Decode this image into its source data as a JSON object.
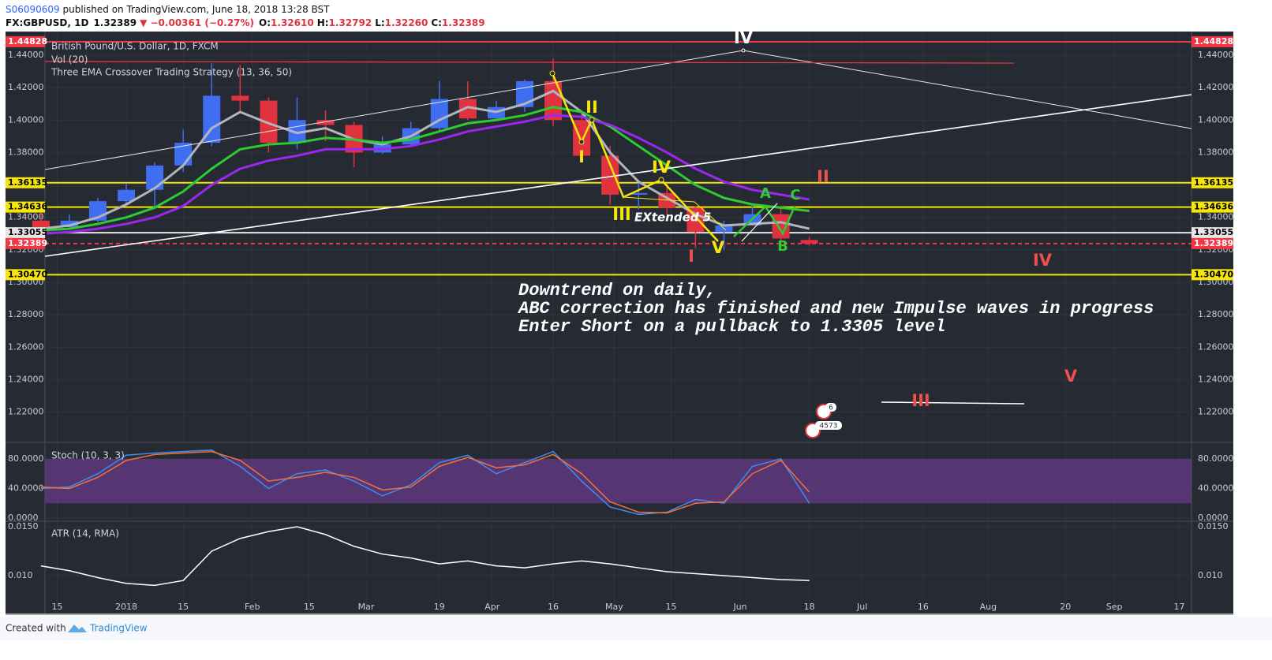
{
  "header": {
    "author": "S06090609",
    "published": " published on TradingView.com, June 18, 2018 13:28 BST",
    "symbol": "FX:GBPUSD, 1D",
    "last": "1.32389",
    "change": "▼ −0.00361 (−0.27%)",
    "ohlc": [
      {
        "label": "O:",
        "value": "1.32610"
      },
      {
        "label": "H:",
        "value": "1.32792"
      },
      {
        "label": "L:",
        "value": "1.32260"
      },
      {
        "label": "C:",
        "value": "1.32389"
      }
    ]
  },
  "chart_data": [
    {
      "type": "candlestick",
      "title": "British Pound/U.S. Dollar, 1D, FXCM",
      "legend": [
        "Vol (20)",
        "Three EMA Crossover Trading Strategy (13, 36, 50)"
      ],
      "xlim": [
        "2017-12-12",
        "2018-09-20"
      ],
      "xticks": [
        {
          "value": "2017-12-15",
          "label": "15"
        },
        {
          "value": "2018-01-01",
          "label": "2018"
        },
        {
          "value": "2018-01-15",
          "label": "15"
        },
        {
          "value": "2018-02-01",
          "label": "Feb"
        },
        {
          "value": "2018-02-15",
          "label": "15"
        },
        {
          "value": "2018-03-01",
          "label": "Mar"
        },
        {
          "value": "2018-03-19",
          "label": "19"
        },
        {
          "value": "2018-04-01",
          "label": "Apr"
        },
        {
          "value": "2018-04-16",
          "label": "16"
        },
        {
          "value": "2018-05-01",
          "label": "May"
        },
        {
          "value": "2018-05-15",
          "label": "15"
        },
        {
          "value": "2018-06-01",
          "label": "Jun"
        },
        {
          "value": "2018-06-18",
          "label": "18"
        },
        {
          "value": "2018-07-01",
          "label": "Jul"
        },
        {
          "value": "2018-07-16",
          "label": "16"
        },
        {
          "value": "2018-08-01",
          "label": "Aug"
        },
        {
          "value": "2018-08-20",
          "label": "20"
        },
        {
          "value": "2018-09-01",
          "label": "Sep"
        },
        {
          "value": "2018-09-17",
          "label": "17"
        }
      ],
      "ylim": [
        1.2018,
        1.4536
      ],
      "yticks": [
        {
          "value": 1.44,
          "label": "1.44000"
        },
        {
          "value": 1.42,
          "label": "1.42000"
        },
        {
          "value": 1.4,
          "label": "1.40000"
        },
        {
          "value": 1.38,
          "label": "1.38000"
        },
        {
          "value": 1.36,
          "label": "1.36000"
        },
        {
          "value": 1.34,
          "label": "1.34000"
        },
        {
          "value": 1.32,
          "label": "1.32000"
        },
        {
          "value": 1.3,
          "label": "1.30000"
        },
        {
          "value": 1.28,
          "label": "1.28000"
        },
        {
          "value": 1.26,
          "label": "1.26000"
        },
        {
          "value": 1.24,
          "label": "1.24000"
        },
        {
          "value": 1.22,
          "label": "1.22000"
        }
      ],
      "levels": [
        {
          "value": 1.44828,
          "label": "1.44828",
          "color": "#f23645",
          "dash": false
        },
        {
          "value": 1.36135,
          "label": "1.36135",
          "color": "#f5e50a",
          "dash": false
        },
        {
          "value": 1.34636,
          "label": "1.34636",
          "color": "#f5e50a",
          "dash": false
        },
        {
          "value": 1.33055,
          "label": "1.33055",
          "color": "#e6e6e6",
          "dash": false
        },
        {
          "value": 1.32389,
          "label": "1.32389",
          "color": "#f23645",
          "dash": true
        },
        {
          "value": 1.3047,
          "label": "1.30470",
          "color": "#f5e50a",
          "dash": false
        }
      ],
      "up_color": "#3f6ff0",
      "down_color": "#e0323f",
      "x": [
        "2017-12-11",
        "2017-12-18",
        "2017-12-25",
        "2018-01-01",
        "2018-01-08",
        "2018-01-15",
        "2018-01-22",
        "2018-01-29",
        "2018-02-05",
        "2018-02-12",
        "2018-02-19",
        "2018-02-26",
        "2018-03-05",
        "2018-03-12",
        "2018-03-19",
        "2018-03-26",
        "2018-04-02",
        "2018-04-09",
        "2018-04-16",
        "2018-04-23",
        "2018-04-30",
        "2018-05-07",
        "2018-05-14",
        "2018-05-21",
        "2018-05-28",
        "2018-06-04",
        "2018-06-11",
        "2018-06-18"
      ],
      "open": [
        1.338,
        1.334,
        1.338,
        1.35,
        1.357,
        1.372,
        1.386,
        1.415,
        1.412,
        1.386,
        1.4,
        1.397,
        1.38,
        1.385,
        1.395,
        1.413,
        1.401,
        1.408,
        1.424,
        1.4,
        1.378,
        1.354,
        1.355,
        1.346,
        1.331,
        1.335,
        1.342,
        1.3261
      ],
      "high": [
        1.346,
        1.342,
        1.352,
        1.361,
        1.374,
        1.394,
        1.435,
        1.434,
        1.414,
        1.414,
        1.406,
        1.399,
        1.39,
        1.399,
        1.424,
        1.424,
        1.412,
        1.425,
        1.438,
        1.405,
        1.384,
        1.363,
        1.361,
        1.347,
        1.338,
        1.347,
        1.347,
        1.32792
      ],
      "low": [
        1.33,
        1.333,
        1.337,
        1.348,
        1.346,
        1.368,
        1.384,
        1.405,
        1.38,
        1.382,
        1.387,
        1.371,
        1.379,
        1.384,
        1.393,
        1.4,
        1.4,
        1.405,
        1.396,
        1.377,
        1.348,
        1.345,
        1.342,
        1.321,
        1.32,
        1.335,
        1.32,
        1.3226
      ],
      "close": [
        1.334,
        1.338,
        1.35,
        1.357,
        1.372,
        1.386,
        1.415,
        1.412,
        1.386,
        1.4,
        1.397,
        1.38,
        1.385,
        1.395,
        1.413,
        1.401,
        1.408,
        1.424,
        1.4,
        1.378,
        1.354,
        1.355,
        1.346,
        1.331,
        1.335,
        1.342,
        1.327,
        1.32389
      ],
      "series": [
        {
          "color": "#b2b5be",
          "values": [
            1.333,
            1.335,
            1.34,
            1.348,
            1.358,
            1.372,
            1.395,
            1.405,
            1.398,
            1.392,
            1.395,
            1.388,
            1.385,
            1.39,
            1.4,
            1.408,
            1.405,
            1.41,
            1.418,
            1.405,
            1.38,
            1.362,
            1.352,
            1.342,
            1.335,
            1.336,
            1.337,
            1.333
          ]
        },
        {
          "color": "#2dcc31",
          "values": [
            1.332,
            1.333,
            1.336,
            1.34,
            1.346,
            1.356,
            1.37,
            1.382,
            1.385,
            1.386,
            1.389,
            1.388,
            1.386,
            1.388,
            1.393,
            1.398,
            1.4,
            1.403,
            1.408,
            1.405,
            1.396,
            1.384,
            1.372,
            1.36,
            1.352,
            1.348,
            1.346,
            1.344
          ]
        },
        {
          "color": "#9c27ef",
          "values": [
            1.33,
            1.331,
            1.333,
            1.336,
            1.34,
            1.347,
            1.36,
            1.37,
            1.375,
            1.378,
            1.382,
            1.382,
            1.382,
            1.384,
            1.388,
            1.393,
            1.396,
            1.399,
            1.403,
            1.402,
            1.397,
            1.389,
            1.38,
            1.37,
            1.362,
            1.357,
            1.354,
            1.351
          ]
        }
      ]
    },
    {
      "type": "line",
      "title": "Stoch (10, 3, 3)",
      "ylim": [
        -3.2,
        101.3
      ],
      "yticks": [
        {
          "value": 80,
          "label": "80.0000"
        },
        {
          "value": 40,
          "label": "40.0000"
        },
        {
          "value": 0,
          "label": "0.0000"
        }
      ],
      "band": [
        20,
        80
      ],
      "band_color": "#7b3fa8",
      "series": [
        {
          "color": "#3f8cf0",
          "values": [
            40,
            42,
            60,
            85,
            88,
            90,
            92,
            70,
            40,
            60,
            65,
            50,
            30,
            45,
            75,
            85,
            60,
            75,
            90,
            50,
            15,
            5,
            8,
            25,
            20,
            70,
            80,
            20
          ]
        },
        {
          "color": "#f2703a",
          "values": [
            42,
            40,
            55,
            78,
            86,
            88,
            90,
            78,
            50,
            55,
            62,
            55,
            38,
            42,
            70,
            82,
            68,
            72,
            86,
            60,
            22,
            8,
            7,
            20,
            22,
            60,
            78,
            35
          ]
        }
      ]
    },
    {
      "type": "line",
      "title": "ATR (14, RMA)",
      "ylim": [
        0.00613,
        0.01548
      ],
      "yticks": [
        {
          "value": 0.015,
          "label": "0.0150"
        },
        {
          "value": 0.01,
          "label": "0.010"
        }
      ],
      "series": [
        {
          "color": "#ffffff",
          "values": [
            0.011,
            0.0105,
            0.0098,
            0.0092,
            0.009,
            0.0095,
            0.0125,
            0.0138,
            0.0145,
            0.015,
            0.0142,
            0.013,
            0.0122,
            0.0118,
            0.0112,
            0.0115,
            0.011,
            0.0108,
            0.0112,
            0.0115,
            0.0112,
            0.0108,
            0.0104,
            0.0102,
            0.01,
            0.0098,
            0.0096,
            0.0095
          ]
        }
      ]
    }
  ],
  "annotations": {
    "note": [
      "Downtrend on daily,",
      "ABC correction has finished and new Impulse waves in progress",
      "Enter Short on a pullback to 1.3305 level"
    ],
    "waves": [
      "IV",
      "II",
      "I",
      "IV",
      "III",
      "EXtended 5",
      "V",
      "I",
      "A",
      "B",
      "C",
      "II",
      "IV",
      "V",
      "III"
    ],
    "events": [
      "6",
      "4573"
    ]
  },
  "footer": {
    "created": "Created with",
    "brand": "TradingView"
  }
}
